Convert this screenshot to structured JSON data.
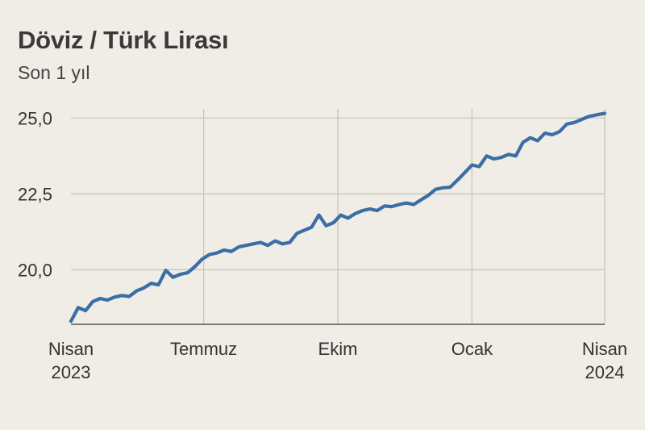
{
  "header": {
    "title": "Döviz / Türk Lirası",
    "subtitle": "Son 1 yıl"
  },
  "chart_data": {
    "type": "line",
    "title": "Döviz / Türk Lirası",
    "subtitle": "Son 1 yıl",
    "xlabel": "",
    "ylabel": "",
    "ylim": [
      18.2,
      25.3
    ],
    "xlim": [
      "2023-04-01",
      "2024-04-01"
    ],
    "yticks": [
      20.0,
      22.5,
      25.0
    ],
    "ytick_labels": [
      "20,0",
      "22,5",
      "25,0"
    ],
    "xticks": [
      "2023-04-01",
      "2023-07-01",
      "2023-10-01",
      "2024-01-01",
      "2024-04-01"
    ],
    "xtick_labels": [
      [
        "Nisan",
        "2023"
      ],
      [
        "Temmuz"
      ],
      [
        "Ekim"
      ],
      [
        "Ocak"
      ],
      [
        "Nisan",
        "2024"
      ]
    ],
    "grid": {
      "x": true,
      "y": true
    },
    "legend": "none",
    "series": [
      {
        "color": "#3a6ea5",
        "x": [
          "2023-04-01",
          "2023-04-06",
          "2023-04-11",
          "2023-04-16",
          "2023-04-21",
          "2023-04-26",
          "2023-05-01",
          "2023-05-06",
          "2023-05-11",
          "2023-05-16",
          "2023-05-21",
          "2023-05-26",
          "2023-05-31",
          "2023-06-05",
          "2023-06-10",
          "2023-06-15",
          "2023-06-20",
          "2023-06-25",
          "2023-06-30",
          "2023-07-05",
          "2023-07-10",
          "2023-07-15",
          "2023-07-20",
          "2023-07-25",
          "2023-07-30",
          "2023-08-04",
          "2023-08-09",
          "2023-08-14",
          "2023-08-19",
          "2023-08-24",
          "2023-08-29",
          "2023-09-03",
          "2023-09-08",
          "2023-09-13",
          "2023-09-18",
          "2023-09-23",
          "2023-09-28",
          "2023-10-03",
          "2023-10-08",
          "2023-10-13",
          "2023-10-18",
          "2023-10-23",
          "2023-10-28",
          "2023-11-02",
          "2023-11-07",
          "2023-11-12",
          "2023-11-17",
          "2023-11-22",
          "2023-11-27",
          "2023-12-02",
          "2023-12-07",
          "2023-12-12",
          "2023-12-17",
          "2023-12-22",
          "2023-12-27",
          "2024-01-01",
          "2024-01-06",
          "2024-01-11",
          "2024-01-16",
          "2024-01-21",
          "2024-01-26",
          "2024-01-31",
          "2024-02-05",
          "2024-02-10",
          "2024-02-15",
          "2024-02-20",
          "2024-02-25",
          "2024-03-01",
          "2024-03-06",
          "2024-03-11",
          "2024-03-16",
          "2024-03-21",
          "2024-03-26",
          "2024-04-01"
        ],
        "values": [
          18.3,
          18.75,
          18.65,
          18.95,
          19.05,
          19.0,
          19.1,
          19.15,
          19.12,
          19.3,
          19.4,
          19.55,
          19.5,
          19.98,
          19.75,
          19.85,
          19.9,
          20.1,
          20.35,
          20.5,
          20.55,
          20.65,
          20.6,
          20.75,
          20.8,
          20.85,
          20.9,
          20.8,
          20.95,
          20.85,
          20.9,
          21.2,
          21.3,
          21.4,
          21.8,
          21.45,
          21.55,
          21.8,
          21.7,
          21.85,
          21.95,
          22.0,
          21.95,
          22.1,
          22.08,
          22.15,
          22.2,
          22.15,
          22.3,
          22.45,
          22.65,
          22.7,
          22.72,
          22.95,
          23.2,
          23.45,
          23.4,
          23.75,
          23.65,
          23.7,
          23.8,
          23.75,
          24.2,
          24.35,
          24.25,
          24.5,
          24.45,
          24.55,
          24.8,
          24.85,
          24.95,
          25.05,
          25.1,
          25.15
        ]
      }
    ]
  }
}
